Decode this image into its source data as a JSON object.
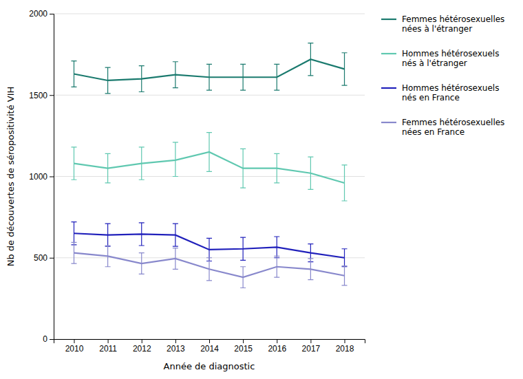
{
  "chart_data": {
    "type": "line",
    "x_label": "Année de diagnostic",
    "y_label": "Nb de découvertes de séropositivité VIH",
    "x": [
      2010,
      2011,
      2012,
      2013,
      2014,
      2015,
      2016,
      2017,
      2018
    ],
    "xlim": [
      2009.4,
      2018.6
    ],
    "xticks": [
      2010,
      2011,
      2012,
      2013,
      2014,
      2015,
      2016,
      2017,
      2018
    ],
    "ylim": [
      0,
      2000
    ],
    "yticks": [
      0,
      500,
      1000,
      1500,
      2000
    ],
    "grid": true,
    "legend": "right",
    "series": [
      {
        "name": "Femmes hétérosexuelles\nnées à l'étranger",
        "color": "#1a7a6e",
        "values": [
          1630,
          1590,
          1600,
          1625,
          1610,
          1610,
          1610,
          1720,
          1660
        ],
        "yerr_low": [
          80,
          80,
          80,
          80,
          80,
          80,
          80,
          100,
          100
        ],
        "yerr_high": [
          80,
          80,
          80,
          80,
          80,
          80,
          80,
          100,
          100
        ]
      },
      {
        "name": "Hommes hétérosexuels\nnés à l'étranger",
        "color": "#5fc8b0",
        "values": [
          1080,
          1050,
          1080,
          1100,
          1150,
          1050,
          1050,
          1020,
          960
        ],
        "yerr_low": [
          100,
          90,
          100,
          100,
          120,
          120,
          90,
          100,
          110
        ],
        "yerr_high": [
          100,
          90,
          100,
          110,
          120,
          120,
          90,
          100,
          110
        ]
      },
      {
        "name": "Hommes hétérosexuels\nnés en France",
        "color": "#2020bb",
        "values": [
          650,
          640,
          645,
          640,
          550,
          555,
          565,
          530,
          500
        ],
        "yerr_low": [
          70,
          70,
          70,
          70,
          70,
          70,
          65,
          55,
          55
        ],
        "yerr_high": [
          70,
          70,
          70,
          70,
          70,
          70,
          65,
          55,
          55
        ]
      },
      {
        "name": "Femmes hétérosexuelles\nnées en France",
        "color": "#8888cc",
        "values": [
          530,
          510,
          465,
          495,
          430,
          380,
          445,
          430,
          390
        ],
        "yerr_low": [
          65,
          65,
          65,
          65,
          70,
          65,
          65,
          65,
          60
        ],
        "yerr_high": [
          65,
          65,
          65,
          65,
          70,
          65,
          65,
          65,
          60
        ]
      }
    ]
  }
}
